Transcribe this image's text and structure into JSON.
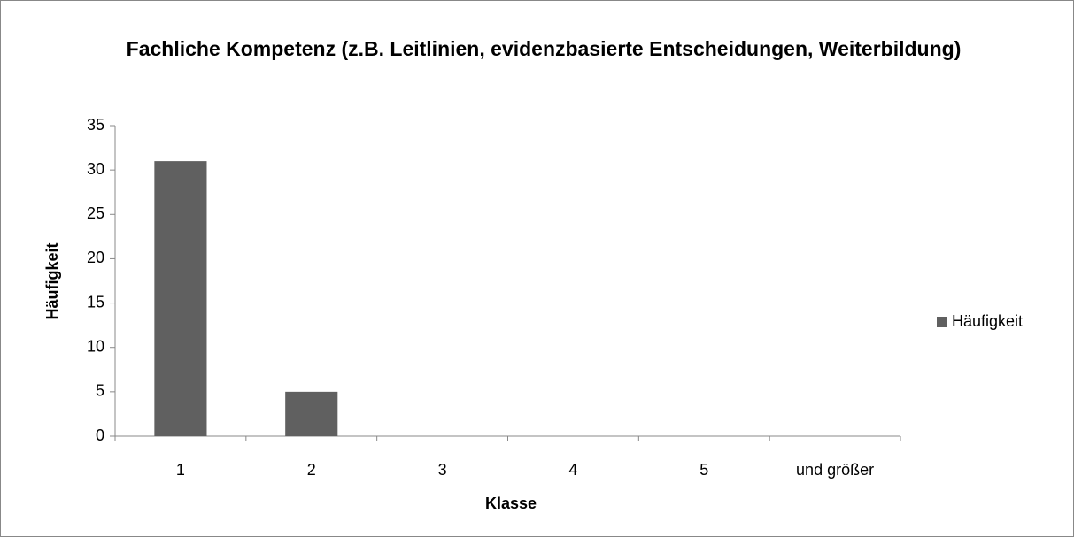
{
  "chart_data": {
    "type": "bar",
    "title": "Fachliche Kompetenz (z.B. Leitlinien, evidenzbasierte Entscheidungen, Weiterbildung)",
    "x_label": "Klasse",
    "y_label": "Häufigkeit",
    "categories": [
      "1",
      "2",
      "3",
      "4",
      "5",
      "und größer"
    ],
    "series": [
      {
        "name": "Häufigkeit",
        "color": "#606060",
        "values": [
          31,
          5,
          0,
          0,
          0,
          0
        ]
      }
    ],
    "ylim": [
      0,
      35
    ],
    "yticks": [
      0,
      5,
      10,
      15,
      20,
      25,
      30,
      35
    ],
    "legend": "right"
  }
}
